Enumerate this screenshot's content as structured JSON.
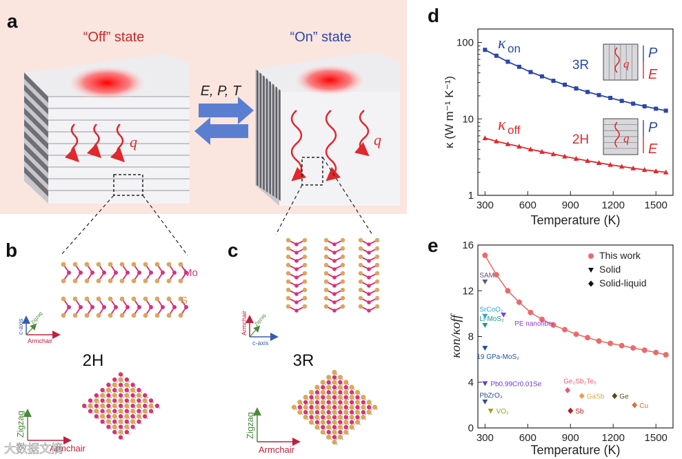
{
  "panels": {
    "a": {
      "letter": "a",
      "off_title": "“Off” state",
      "on_title": "“On” state",
      "stimulus": "E, P, T",
      "heat_symbol": "q"
    },
    "b": {
      "letter": "b",
      "phase": "2H",
      "mo_label": "Mo",
      "s_label": "S",
      "axes": {
        "c": "c-axis",
        "zigzag": "Zigzag",
        "armchair": "Armchair"
      }
    },
    "c": {
      "letter": "c",
      "phase": "3R",
      "axes": {
        "c": "c-axis",
        "zigzag": "Zigzag",
        "armchair": "Armchair"
      }
    },
    "d": {
      "letter": "d"
    },
    "e": {
      "letter": "e"
    }
  },
  "colors": {
    "panel_a_bg": "#fbe5df",
    "on_series": "#2b46a8",
    "off_series": "#e0282d",
    "this_work": "#ec6a6a",
    "mo_atom": "#d6337a",
    "s_atom": "#d9a85a"
  },
  "watermark": "大数据文摘",
  "chart_data": [
    {
      "id": "d",
      "type": "line",
      "yscale": "log",
      "xlabel": "Temperature (K)",
      "ylabel": "κ (W m⁻¹ K⁻¹)",
      "xlim": [
        250,
        1620
      ],
      "ylim": [
        1,
        150
      ],
      "xticks": [
        300,
        600,
        900,
        1200,
        1500
      ],
      "yticks": [
        1,
        10,
        100
      ],
      "series": [
        {
          "name": "κon",
          "main": "κ",
          "sub": "on",
          "phase": "3R",
          "field_labels": [
            "P",
            "E"
          ],
          "heat": "q",
          "x": [
            300,
            380,
            460,
            540,
            620,
            700,
            780,
            860,
            940,
            1020,
            1100,
            1180,
            1260,
            1340,
            1420,
            1500,
            1570
          ],
          "y": [
            80,
            67,
            56,
            48,
            41,
            36,
            31.5,
            28,
            25,
            22.5,
            20.5,
            18.8,
            17.2,
            15.8,
            14.6,
            13.6,
            12.8
          ]
        },
        {
          "name": "κoff",
          "main": "κ",
          "sub": "off",
          "phase": "2H",
          "field_labels": [
            "P",
            "E"
          ],
          "heat": "q",
          "x": [
            300,
            380,
            460,
            540,
            620,
            700,
            780,
            860,
            940,
            1020,
            1100,
            1180,
            1260,
            1340,
            1420,
            1500,
            1570
          ],
          "y": [
            5.6,
            5.1,
            4.7,
            4.35,
            4.0,
            3.72,
            3.46,
            3.23,
            3.02,
            2.83,
            2.66,
            2.51,
            2.38,
            2.26,
            2.16,
            2.07,
            2.0
          ]
        }
      ]
    },
    {
      "id": "e",
      "type": "scatter",
      "xlabel": "Temperature (K)",
      "ylabel": "κon/κoff",
      "xlim": [
        250,
        1620
      ],
      "ylim": [
        0,
        16
      ],
      "xticks": [
        300,
        600,
        900,
        1200,
        1500
      ],
      "yticks": [
        0,
        4,
        8,
        12,
        16
      ],
      "legend": {
        "placement": "top-right",
        "entries": [
          "This work",
          "Solid",
          "Solid-liquid"
        ]
      },
      "this_work": {
        "x": [
          300,
          380,
          460,
          540,
          620,
          700,
          780,
          860,
          940,
          1020,
          1100,
          1180,
          1260,
          1340,
          1420,
          1500,
          1570
        ],
        "y": [
          15.1,
          13.4,
          12.0,
          11.0,
          10.1,
          9.5,
          9.0,
          8.6,
          8.2,
          7.9,
          7.6,
          7.4,
          7.2,
          7.0,
          6.8,
          6.6,
          6.4
        ]
      },
      "solid": [
        {
          "label": "SAM",
          "x": 300,
          "y": 12.8,
          "color": "#5a5a7a"
        },
        {
          "label": "SrCoO₂",
          "x": 300,
          "y": 9.8,
          "color": "#2aa6d8"
        },
        {
          "label": "Li-MoS₂",
          "x": 300,
          "y": 9.0,
          "color": "#1a9a8a"
        },
        {
          "label": "PE nanofiber",
          "x": 430,
          "y": 9.9,
          "color": "#9a36d0"
        },
        {
          "label": "19 GPa-MoS₂",
          "x": 300,
          "y": 7.0,
          "color": "#1f4e9c"
        },
        {
          "label": "Pb0.99Cr0.01Se",
          "x": 300,
          "y": 3.9,
          "color": "#6a3ad8"
        },
        {
          "label": "PbZrO₃",
          "x": 300,
          "y": 2.3,
          "color": "#2f4f8f"
        },
        {
          "label": "VO₂",
          "x": 340,
          "y": 1.5,
          "color": "#a0a020"
        }
      ],
      "solid_liquid": [
        {
          "label": "Ge₂Sb₂Te₅",
          "x": 880,
          "y": 3.3,
          "color": "#e05e6e"
        },
        {
          "label": "GaSb",
          "x": 980,
          "y": 2.8,
          "color": "#e8a048"
        },
        {
          "label": "Ge",
          "x": 1210,
          "y": 2.8,
          "color": "#5a4a20"
        },
        {
          "label": "Cu",
          "x": 1350,
          "y": 2.0,
          "color": "#d87040"
        },
        {
          "label": "Sb",
          "x": 900,
          "y": 1.5,
          "color": "#b02020"
        }
      ]
    }
  ]
}
